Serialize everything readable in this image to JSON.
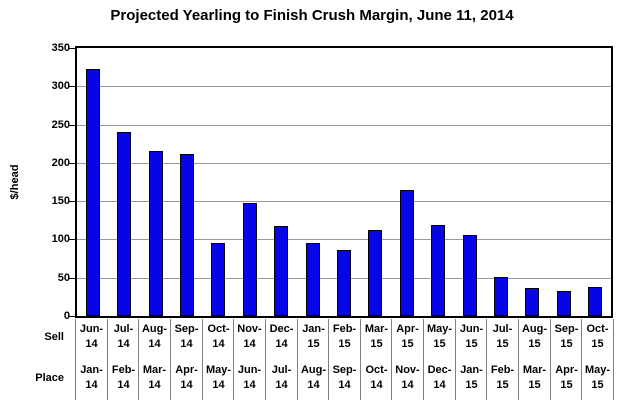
{
  "chart_data": {
    "type": "bar",
    "title": "Projected Yearling to Finish Crush Margin, June 11, 2014",
    "ylabel": "$/head",
    "ylim": [
      0,
      350
    ],
    "ytick_step": 50,
    "grid": true,
    "legend": "none",
    "bar_color": "#0505E8",
    "bar_border_color": "#000010",
    "gridline_color": "#999999",
    "separator_color": "#808080",
    "axis_row_labels": [
      "Sell",
      "Place"
    ],
    "categories_sell": [
      "Jun-14",
      "Jul-14",
      "Aug-14",
      "Sep-14",
      "Oct-14",
      "Nov-14",
      "Dec-14",
      "Jan-15",
      "Feb-15",
      "Mar-15",
      "Apr-15",
      "May-15",
      "Jun-15",
      "Jul-15",
      "Aug-15",
      "Sep-15",
      "Oct-15"
    ],
    "categories_place": [
      "Jan-14",
      "Feb-14",
      "Mar-14",
      "Apr-14",
      "May-14",
      "Jun-14",
      "Jul-14",
      "Aug-14",
      "Sep-14",
      "Oct-14",
      "Nov-14",
      "Dec-14",
      "Jan-15",
      "Feb-15",
      "Mar-15",
      "Apr-15",
      "May-15"
    ],
    "values": [
      323,
      240,
      215,
      212,
      95,
      148,
      117,
      95,
      86,
      112,
      165,
      119,
      106,
      51,
      36,
      33,
      38
    ]
  }
}
